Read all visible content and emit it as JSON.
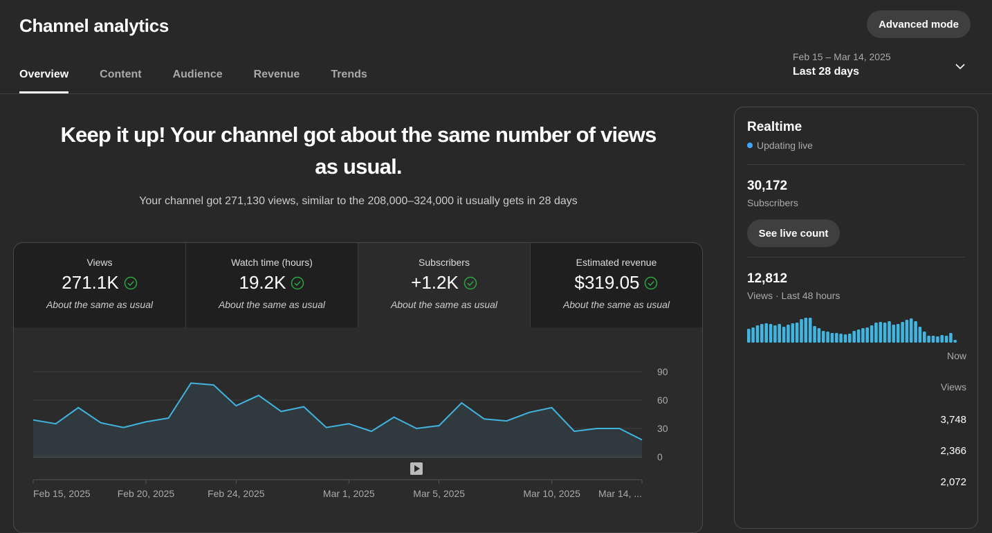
{
  "app": {
    "title": "Channel analytics",
    "advanced_label": "Advanced mode"
  },
  "tabs": [
    {
      "label": "Overview",
      "active": true
    },
    {
      "label": "Content"
    },
    {
      "label": "Audience"
    },
    {
      "label": "Revenue"
    },
    {
      "label": "Trends"
    }
  ],
  "date_range": {
    "dates": "Feb 15 – Mar 14, 2025",
    "label": "Last 28 days"
  },
  "summary": {
    "headline": "Keep it up! Your channel got about the same number of views as usual.",
    "subline": "Your channel got 271,130 views, similar to the 208,000–324,000 it usually gets in 28 days"
  },
  "metrics": [
    {
      "label": "Views",
      "value": "271.1K",
      "note": "About the same as usual"
    },
    {
      "label": "Watch time (hours)",
      "value": "19.2K",
      "note": "About the same as usual"
    },
    {
      "label": "Subscribers",
      "value": "+1.2K",
      "note": "About the same as usual"
    },
    {
      "label": "Estimated revenue",
      "value": "$319.05",
      "note": "About the same as usual"
    }
  ],
  "colors": {
    "accent": "#3ea6ff",
    "line": "#41b4e0",
    "check": "#2ba640"
  },
  "chart_data": {
    "type": "area",
    "y_ticks": [
      "90",
      "60",
      "30",
      "0"
    ],
    "ylim": [
      0,
      90
    ],
    "x_tick_labels": [
      "Feb 15, 2025",
      "Feb 20, 2025",
      "Feb 24, 2025",
      "Mar 1, 2025",
      "Mar 5, 2025",
      "Mar 10, 2025",
      "Mar 14, ..."
    ],
    "x_tick_index": [
      0,
      5,
      9,
      14,
      18,
      23,
      27
    ],
    "values": [
      39,
      35,
      52,
      36,
      31,
      37,
      41,
      78,
      76,
      54,
      65,
      48,
      53,
      31,
      35,
      27,
      42,
      30,
      33,
      57,
      40,
      38,
      47,
      52,
      27,
      30,
      30,
      18
    ]
  },
  "realtime": {
    "title": "Realtime",
    "live_label": "Updating live",
    "subscribers": "30,172",
    "subscribers_label": "Subscribers",
    "live_count_label": "See live count",
    "views": "12,812",
    "views_label": "Views · Last 48 hours",
    "now_label": "Now",
    "col_label": "Views",
    "top_values": [
      "3,748",
      "2,366",
      "2,072"
    ],
    "bars": [
      20,
      22,
      25,
      27,
      28,
      27,
      25,
      27,
      23,
      26,
      28,
      29,
      34,
      36,
      36,
      24,
      21,
      17,
      16,
      14,
      14,
      13,
      12,
      13,
      17,
      19,
      21,
      22,
      25,
      29,
      30,
      29,
      31,
      26,
      27,
      30,
      33,
      35,
      31,
      23,
      16,
      10,
      10,
      9,
      11,
      10,
      14,
      4
    ]
  }
}
